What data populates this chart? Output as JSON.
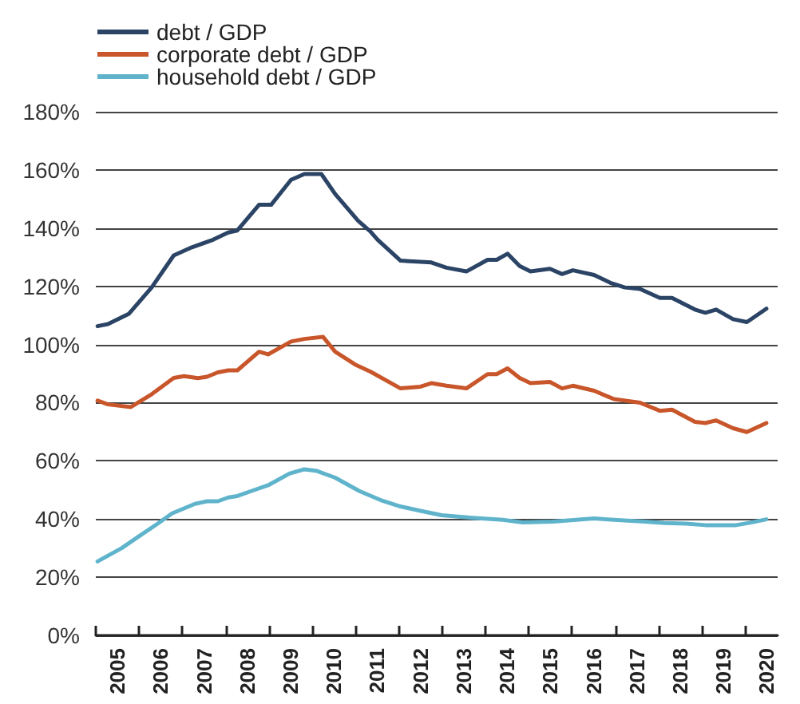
{
  "chart_data": {
    "type": "line",
    "legend": "top left",
    "grid": "y",
    "marker": "none",
    "line_style": "solid",
    "xlim": [
      2005,
      2020.75
    ],
    "xticks": [
      {
        "value": 2005,
        "label": null
      },
      {
        "value": 2005.5,
        "label": "2005"
      },
      {
        "value": 2006,
        "label": null
      },
      {
        "value": 2006.5,
        "label": "2006"
      },
      {
        "value": 2007,
        "label": null
      },
      {
        "value": 2007.5,
        "label": "2007"
      },
      {
        "value": 2008,
        "label": null
      },
      {
        "value": 2008.5,
        "label": "2008"
      },
      {
        "value": 2009,
        "label": null
      },
      {
        "value": 2009.5,
        "label": "2009"
      },
      {
        "value": 2010,
        "label": null
      },
      {
        "value": 2010.5,
        "label": "2010"
      },
      {
        "value": 2011,
        "label": null
      },
      {
        "value": 2011.5,
        "label": "2011"
      },
      {
        "value": 2012,
        "label": null
      },
      {
        "value": 2012.5,
        "label": "2012"
      },
      {
        "value": 2013,
        "label": null
      },
      {
        "value": 2013.5,
        "label": "2013"
      },
      {
        "value": 2014,
        "label": null
      },
      {
        "value": 2014.5,
        "label": "2014"
      },
      {
        "value": 2015,
        "label": null
      },
      {
        "value": 2015.5,
        "label": "2015"
      },
      {
        "value": 2016,
        "label": null
      },
      {
        "value": 2016.5,
        "label": "2016"
      },
      {
        "value": 2017,
        "label": null
      },
      {
        "value": 2017.5,
        "label": "2017"
      },
      {
        "value": 2018,
        "label": null
      },
      {
        "value": 2018.5,
        "label": "2018"
      },
      {
        "value": 2019,
        "label": null
      },
      {
        "value": 2019.5,
        "label": "2019"
      },
      {
        "value": 2020,
        "label": null
      },
      {
        "value": 2020.5,
        "label": "2020"
      }
    ],
    "ylim": [
      0,
      180
    ],
    "yticks": [
      {
        "value": 0,
        "label": "0%"
      },
      {
        "value": 20,
        "label": "20%"
      },
      {
        "value": 40,
        "label": "40%"
      },
      {
        "value": 60,
        "label": "60%"
      },
      {
        "value": 80,
        "label": "80%"
      },
      {
        "value": 100,
        "label": "100%"
      },
      {
        "value": 120,
        "label": "120%"
      },
      {
        "value": 140,
        "label": "140%"
      },
      {
        "value": 160,
        "label": "160%"
      },
      {
        "value": 180,
        "label": "180%"
      }
    ],
    "series": [
      {
        "name": "debt / GDP",
        "color": "#2b4466",
        "x": [
          2005.04,
          2005.28,
          2005.76,
          2006.29,
          2006.8,
          2007.22,
          2007.71,
          2008.06,
          2008.27,
          2008.77,
          2009.05,
          2009.51,
          2009.82,
          2010.21,
          2010.53,
          2011.06,
          2011.34,
          2011.51,
          2012.04,
          2012.75,
          2013.1,
          2013.56,
          2014.05,
          2014.26,
          2014.51,
          2014.79,
          2015.04,
          2015.49,
          2015.77,
          2016.02,
          2016.51,
          2016.9,
          2017.22,
          2017.57,
          2018.03,
          2018.31,
          2018.84,
          2019.08,
          2019.33,
          2019.72,
          2020.04,
          2020.49
        ],
        "values": [
          106.3,
          107,
          110.5,
          119.6,
          130.6,
          133.4,
          136,
          138.5,
          139.2,
          148,
          148,
          156.6,
          158.6,
          158.6,
          151.7,
          142.5,
          138.9,
          136,
          128.8,
          128.2,
          126.4,
          125.1,
          129.1,
          129.1,
          131.2,
          127,
          125.1,
          126,
          124.2,
          125.5,
          123.9,
          121.1,
          119.6,
          119.1,
          116,
          116,
          112,
          110.9,
          112,
          108.7,
          107.7,
          112.3
        ]
      },
      {
        "name": "corporate debt / GDP",
        "color": "#c8562a",
        "x": [
          2005.04,
          2005.28,
          2005.81,
          2006.3,
          2006.8,
          2007.04,
          2007.36,
          2007.57,
          2007.82,
          2008.06,
          2008.27,
          2008.77,
          2008.98,
          2009.51,
          2009.82,
          2010.25,
          2010.53,
          2010.99,
          2011.34,
          2012.04,
          2012.5,
          2012.75,
          2013.1,
          2013.56,
          2014.05,
          2014.26,
          2014.51,
          2014.79,
          2015.04,
          2015.49,
          2015.77,
          2016.02,
          2016.51,
          2016.97,
          2017.57,
          2018.03,
          2018.31,
          2018.84,
          2019.08,
          2019.33,
          2019.72,
          2020.04,
          2020.49
        ],
        "values": [
          80.7,
          79.4,
          78.5,
          83,
          88.5,
          89.1,
          88.4,
          88.9,
          90.4,
          91.1,
          91.1,
          97.5,
          96.6,
          101,
          101.9,
          102.6,
          97.5,
          93.1,
          90.7,
          84.9,
          85.5,
          86.7,
          85.8,
          84.9,
          89.8,
          89.8,
          91.8,
          88.5,
          86.7,
          87.1,
          84.9,
          85.8,
          84.1,
          81.2,
          80,
          77.2,
          77.6,
          73.4,
          73,
          73.9,
          71.2,
          69.9,
          73
        ]
      },
      {
        "name": "household debt / GDP",
        "color": "#5fb4cc",
        "x": [
          2005.04,
          2005.6,
          2005.99,
          2006.41,
          2006.76,
          2007.29,
          2007.57,
          2007.82,
          2008.06,
          2008.27,
          2008.63,
          2008.98,
          2009.47,
          2009.82,
          2010.11,
          2010.53,
          2011.09,
          2011.58,
          2012.04,
          2012.5,
          2012.99,
          2013.7,
          2014.4,
          2014.86,
          2015.56,
          2016.51,
          2016.97,
          2017.68,
          2018.13,
          2018.63,
          2019.08,
          2019.79,
          2020.14,
          2020.49
        ],
        "values": [
          25.4,
          30,
          34,
          38.2,
          41.9,
          45.2,
          46.1,
          46.1,
          47.4,
          47.9,
          49.8,
          51.6,
          55.6,
          57.1,
          56.5,
          54.2,
          49.6,
          46.5,
          44.3,
          42.8,
          41.3,
          40.4,
          39.7,
          38.8,
          39.1,
          40.2,
          39.7,
          39.1,
          38.6,
          38.4,
          37.9,
          37.9,
          38.8,
          39.9
        ]
      }
    ]
  }
}
